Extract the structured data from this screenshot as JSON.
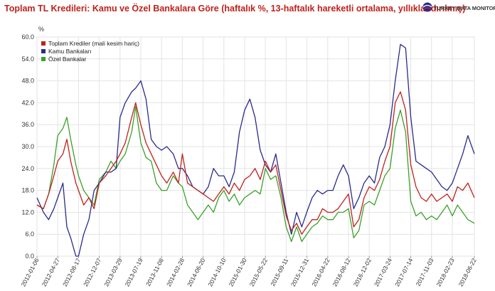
{
  "header": {
    "title": "Toplam TL Kredileri: Kamu ve Özel Bankalara Göre (haftalık %, 13-haftalık hareketli ortalama, yıllıklandırılmış)",
    "logo_text": "TURKEY DATA MONITOR"
  },
  "chart_data": {
    "type": "line",
    "title": "Toplam TL Kredileri: Kamu ve Özel Bankalara Göre (haftalık %, 13-haftalık hareketli ortalama, yıllıklandırılmış)",
    "ylabel": "%",
    "xlabel": "",
    "ylim": [
      0,
      60
    ],
    "yticks": [
      "0.0",
      "6.0",
      "12.0",
      "18.0",
      "24.0",
      "30.0",
      "36.0",
      "42.0",
      "48.0",
      "54.0",
      "60.0"
    ],
    "xlim": [
      "2012-01-06",
      "2018-06-22"
    ],
    "xticks": [
      "2012-01-06",
      "2012-04-27",
      "2012-08-17",
      "2012-12-07",
      "2013-03-29",
      "2013-07-19",
      "2013-11-08",
      "2014-02-28",
      "2014-06-20",
      "2014-10-10",
      "2015-01-30",
      "2015-05-22",
      "2015-09-11",
      "2015-12-31",
      "2016-04-22",
      "2016-08-12",
      "2016-12-02",
      "2017-03-24",
      "2017-07-14",
      "2017-11-03",
      "2018-02-23",
      "2018-06-22"
    ],
    "grid": true,
    "legend_position": "top-left",
    "colors": {
      "total": "#c0211b",
      "public": "#2a2a8c",
      "private": "#3aa02a"
    },
    "series": [
      {
        "name": "Toplam Krediler (mali kesim hariç)",
        "color": "#c0211b",
        "points": [
          [
            "2012-01-06",
            14
          ],
          [
            "2012-02-10",
            13
          ],
          [
            "2012-03-09",
            17
          ],
          [
            "2012-04-06",
            22
          ],
          [
            "2012-04-27",
            26
          ],
          [
            "2012-05-25",
            28
          ],
          [
            "2012-06-15",
            32
          ],
          [
            "2012-07-06",
            26
          ],
          [
            "2012-08-03",
            20
          ],
          [
            "2012-08-17",
            18
          ],
          [
            "2012-09-14",
            14
          ],
          [
            "2012-10-12",
            16
          ],
          [
            "2012-11-09",
            13
          ],
          [
            "2012-12-07",
            20
          ],
          [
            "2013-01-11",
            22
          ],
          [
            "2013-02-08",
            24
          ],
          [
            "2013-03-08",
            26
          ],
          [
            "2013-03-29",
            28
          ],
          [
            "2013-04-26",
            31
          ],
          [
            "2013-05-31",
            38
          ],
          [
            "2013-06-21",
            42
          ],
          [
            "2013-07-19",
            36
          ],
          [
            "2013-08-16",
            31
          ],
          [
            "2013-09-13",
            28
          ],
          [
            "2013-10-11",
            25
          ],
          [
            "2013-11-08",
            22
          ],
          [
            "2013-12-06",
            20
          ],
          [
            "2014-01-10",
            23
          ],
          [
            "2014-02-07",
            20
          ],
          [
            "2014-02-28",
            28
          ],
          [
            "2014-03-28",
            20
          ],
          [
            "2014-04-25",
            19
          ],
          [
            "2014-05-23",
            18
          ],
          [
            "2014-06-20",
            17
          ],
          [
            "2014-07-18",
            16
          ],
          [
            "2014-08-15",
            15
          ],
          [
            "2014-09-12",
            17
          ],
          [
            "2014-10-10",
            19
          ],
          [
            "2014-11-07",
            17
          ],
          [
            "2014-12-05",
            20
          ],
          [
            "2015-01-02",
            18
          ],
          [
            "2015-01-30",
            21
          ],
          [
            "2015-02-27",
            22
          ],
          [
            "2015-03-27",
            24
          ],
          [
            "2015-04-24",
            21
          ],
          [
            "2015-05-22",
            26
          ],
          [
            "2015-06-19",
            23
          ],
          [
            "2015-07-17",
            25
          ],
          [
            "2015-08-14",
            18
          ],
          [
            "2015-09-11",
            11
          ],
          [
            "2015-10-09",
            7
          ],
          [
            "2015-11-06",
            9
          ],
          [
            "2015-12-04",
            6
          ],
          [
            "2015-12-31",
            8
          ],
          [
            "2016-01-29",
            10
          ],
          [
            "2016-02-26",
            10
          ],
          [
            "2016-03-25",
            13
          ],
          [
            "2016-04-22",
            12
          ],
          [
            "2016-05-20",
            12
          ],
          [
            "2016-06-17",
            13
          ],
          [
            "2016-07-15",
            15
          ],
          [
            "2016-08-12",
            17
          ],
          [
            "2016-09-09",
            8
          ],
          [
            "2016-10-07",
            10
          ],
          [
            "2016-11-04",
            16
          ],
          [
            "2016-12-02",
            19
          ],
          [
            "2016-12-30",
            18
          ],
          [
            "2017-01-27",
            21
          ],
          [
            "2017-02-24",
            26
          ],
          [
            "2017-03-24",
            30
          ],
          [
            "2017-04-21",
            42
          ],
          [
            "2017-05-19",
            45
          ],
          [
            "2017-06-16",
            40
          ],
          [
            "2017-07-14",
            25
          ],
          [
            "2017-08-11",
            19
          ],
          [
            "2017-09-08",
            16
          ],
          [
            "2017-10-06",
            15
          ],
          [
            "2017-11-03",
            17
          ],
          [
            "2017-12-01",
            15
          ],
          [
            "2017-12-29",
            16
          ],
          [
            "2018-01-26",
            17
          ],
          [
            "2018-02-23",
            15
          ],
          [
            "2018-03-23",
            19
          ],
          [
            "2018-04-20",
            18
          ],
          [
            "2018-05-18",
            20
          ],
          [
            "2018-06-22",
            16
          ]
        ]
      },
      {
        "name": "Kamu Bankaları",
        "color": "#2a2a8c",
        "points": [
          [
            "2012-01-06",
            16
          ],
          [
            "2012-02-10",
            12
          ],
          [
            "2012-03-09",
            10
          ],
          [
            "2012-04-06",
            13
          ],
          [
            "2012-04-27",
            16
          ],
          [
            "2012-05-25",
            20
          ],
          [
            "2012-06-15",
            8
          ],
          [
            "2012-07-06",
            5
          ],
          [
            "2012-08-03",
            0
          ],
          [
            "2012-08-17",
            0
          ],
          [
            "2012-09-14",
            6
          ],
          [
            "2012-10-12",
            10
          ],
          [
            "2012-11-09",
            18
          ],
          [
            "2012-12-07",
            20
          ],
          [
            "2013-01-11",
            23
          ],
          [
            "2013-02-08",
            23
          ],
          [
            "2013-03-08",
            24
          ],
          [
            "2013-03-29",
            38
          ],
          [
            "2013-04-26",
            42
          ],
          [
            "2013-05-31",
            45
          ],
          [
            "2013-06-21",
            46
          ],
          [
            "2013-07-19",
            48
          ],
          [
            "2013-08-16",
            43
          ],
          [
            "2013-09-13",
            32
          ],
          [
            "2013-10-11",
            30
          ],
          [
            "2013-11-08",
            29
          ],
          [
            "2013-12-06",
            30
          ],
          [
            "2014-01-10",
            28
          ],
          [
            "2014-02-07",
            24
          ],
          [
            "2014-02-28",
            24
          ],
          [
            "2014-03-28",
            22
          ],
          [
            "2014-04-25",
            19
          ],
          [
            "2014-05-23",
            18
          ],
          [
            "2014-06-20",
            17
          ],
          [
            "2014-07-18",
            19
          ],
          [
            "2014-08-15",
            24
          ],
          [
            "2014-09-12",
            22
          ],
          [
            "2014-10-10",
            22
          ],
          [
            "2014-11-07",
            19
          ],
          [
            "2014-12-05",
            23
          ],
          [
            "2015-01-02",
            34
          ],
          [
            "2015-01-30",
            40
          ],
          [
            "2015-02-27",
            43
          ],
          [
            "2015-03-27",
            38
          ],
          [
            "2015-04-24",
            29
          ],
          [
            "2015-05-22",
            25
          ],
          [
            "2015-06-19",
            23
          ],
          [
            "2015-07-17",
            28
          ],
          [
            "2015-08-14",
            20
          ],
          [
            "2015-09-11",
            12
          ],
          [
            "2015-10-09",
            6
          ],
          [
            "2015-11-06",
            12
          ],
          [
            "2015-12-04",
            8
          ],
          [
            "2015-12-31",
            12
          ],
          [
            "2016-01-29",
            16
          ],
          [
            "2016-02-26",
            18
          ],
          [
            "2016-03-25",
            17
          ],
          [
            "2016-04-22",
            18
          ],
          [
            "2016-05-20",
            18
          ],
          [
            "2016-06-17",
            22
          ],
          [
            "2016-07-15",
            25
          ],
          [
            "2016-08-12",
            22
          ],
          [
            "2016-09-09",
            13
          ],
          [
            "2016-10-07",
            16
          ],
          [
            "2016-11-04",
            20
          ],
          [
            "2016-12-02",
            22
          ],
          [
            "2016-12-30",
            20
          ],
          [
            "2017-01-27",
            27
          ],
          [
            "2017-02-24",
            30
          ],
          [
            "2017-03-24",
            36
          ],
          [
            "2017-04-21",
            48
          ],
          [
            "2017-05-19",
            58
          ],
          [
            "2017-06-16",
            57
          ],
          [
            "2017-07-14",
            38
          ],
          [
            "2017-08-11",
            26
          ],
          [
            "2017-09-08",
            25
          ],
          [
            "2017-10-06",
            24
          ],
          [
            "2017-11-03",
            23
          ],
          [
            "2017-12-01",
            21
          ],
          [
            "2017-12-29",
            19
          ],
          [
            "2018-01-26",
            18
          ],
          [
            "2018-02-23",
            20
          ],
          [
            "2018-03-23",
            24
          ],
          [
            "2018-04-20",
            28
          ],
          [
            "2018-05-18",
            33
          ],
          [
            "2018-06-22",
            28
          ]
        ]
      },
      {
        "name": "Özel Bankalar",
        "color": "#3aa02a",
        "points": [
          [
            "2012-01-06",
            14
          ],
          [
            "2012-02-10",
            13
          ],
          [
            "2012-03-09",
            17
          ],
          [
            "2012-04-06",
            25
          ],
          [
            "2012-04-27",
            33
          ],
          [
            "2012-05-25",
            35
          ],
          [
            "2012-06-15",
            38
          ],
          [
            "2012-07-06",
            32
          ],
          [
            "2012-08-03",
            25
          ],
          [
            "2012-08-17",
            22
          ],
          [
            "2012-09-14",
            18
          ],
          [
            "2012-10-12",
            16
          ],
          [
            "2012-11-09",
            14
          ],
          [
            "2012-12-07",
            21
          ],
          [
            "2013-01-11",
            23
          ],
          [
            "2013-02-08",
            26
          ],
          [
            "2013-03-08",
            24
          ],
          [
            "2013-03-29",
            26
          ],
          [
            "2013-04-26",
            28
          ],
          [
            "2013-05-31",
            34
          ],
          [
            "2013-06-21",
            41
          ],
          [
            "2013-07-19",
            31
          ],
          [
            "2013-08-16",
            27
          ],
          [
            "2013-09-13",
            26
          ],
          [
            "2013-10-11",
            20
          ],
          [
            "2013-11-08",
            18
          ],
          [
            "2013-12-06",
            18
          ],
          [
            "2014-01-10",
            22
          ],
          [
            "2014-02-07",
            20
          ],
          [
            "2014-02-28",
            19
          ],
          [
            "2014-03-28",
            14
          ],
          [
            "2014-04-25",
            12
          ],
          [
            "2014-05-23",
            10
          ],
          [
            "2014-06-20",
            12
          ],
          [
            "2014-07-18",
            14
          ],
          [
            "2014-08-15",
            12
          ],
          [
            "2014-09-12",
            16
          ],
          [
            "2014-10-10",
            18
          ],
          [
            "2014-11-07",
            15
          ],
          [
            "2014-12-05",
            17
          ],
          [
            "2015-01-02",
            14
          ],
          [
            "2015-01-30",
            16
          ],
          [
            "2015-02-27",
            17
          ],
          [
            "2015-03-27",
            18
          ],
          [
            "2015-04-24",
            17
          ],
          [
            "2015-05-22",
            24
          ],
          [
            "2015-06-19",
            21
          ],
          [
            "2015-07-17",
            22
          ],
          [
            "2015-08-14",
            16
          ],
          [
            "2015-09-11",
            8
          ],
          [
            "2015-10-09",
            4
          ],
          [
            "2015-11-06",
            8
          ],
          [
            "2015-12-04",
            4
          ],
          [
            "2015-12-31",
            6
          ],
          [
            "2016-01-29",
            8
          ],
          [
            "2016-02-26",
            9
          ],
          [
            "2016-03-25",
            11
          ],
          [
            "2016-04-22",
            10
          ],
          [
            "2016-05-20",
            10
          ],
          [
            "2016-06-17",
            12
          ],
          [
            "2016-07-15",
            12
          ],
          [
            "2016-08-12",
            13
          ],
          [
            "2016-09-09",
            5
          ],
          [
            "2016-10-07",
            7
          ],
          [
            "2016-11-04",
            14
          ],
          [
            "2016-12-02",
            15
          ],
          [
            "2016-12-30",
            14
          ],
          [
            "2017-01-27",
            18
          ],
          [
            "2017-02-24",
            22
          ],
          [
            "2017-03-24",
            24
          ],
          [
            "2017-04-21",
            35
          ],
          [
            "2017-05-19",
            40
          ],
          [
            "2017-06-16",
            34
          ],
          [
            "2017-07-14",
            15
          ],
          [
            "2017-08-11",
            11
          ],
          [
            "2017-09-08",
            12
          ],
          [
            "2017-10-06",
            10
          ],
          [
            "2017-11-03",
            11
          ],
          [
            "2017-12-01",
            10
          ],
          [
            "2017-12-29",
            12
          ],
          [
            "2018-01-26",
            14
          ],
          [
            "2018-02-23",
            11
          ],
          [
            "2018-03-23",
            14
          ],
          [
            "2018-04-20",
            12
          ],
          [
            "2018-05-18",
            10
          ],
          [
            "2018-06-22",
            9
          ]
        ]
      }
    ]
  }
}
